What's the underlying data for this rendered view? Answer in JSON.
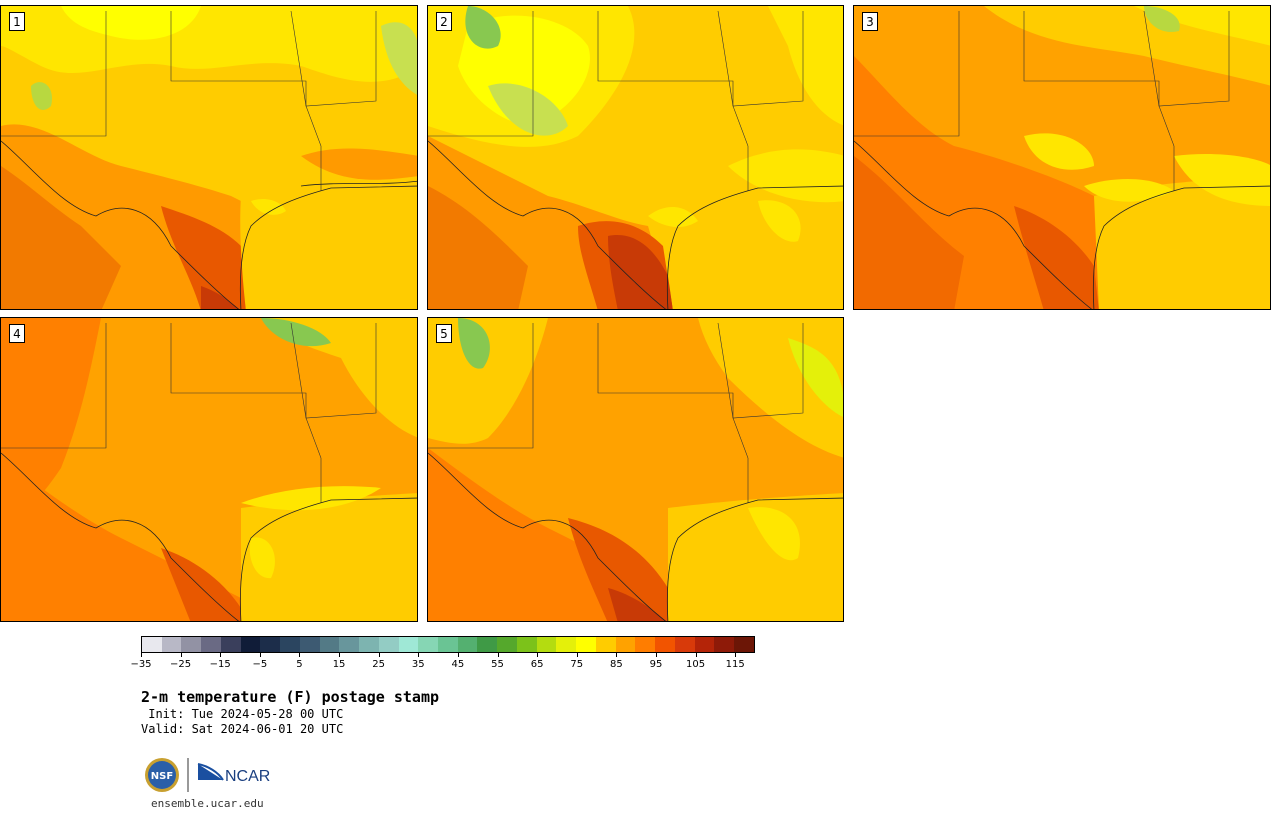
{
  "panels": [
    {
      "id": "p1",
      "label": "1"
    },
    {
      "id": "p2",
      "label": "2"
    },
    {
      "id": "p3",
      "label": "3"
    },
    {
      "id": "p4",
      "label": "4"
    },
    {
      "id": "p5",
      "label": "5"
    }
  ],
  "colorbar": {
    "colors": [
      "#e8e8ee",
      "#b8b8c6",
      "#9292a4",
      "#6a6a84",
      "#3a3f5c",
      "#101c38",
      "#1c2d4a",
      "#2b4560",
      "#3d5a72",
      "#537a86",
      "#68969c",
      "#7db4b0",
      "#93ccc4",
      "#9fe8d6",
      "#86d6b4",
      "#6ac494",
      "#54b070",
      "#3f9a46",
      "#55a82c",
      "#7cc21a",
      "#b4dc10",
      "#e4f00a",
      "#ffff00",
      "#ffcc00",
      "#ffa200",
      "#ff7d00",
      "#f25400",
      "#d83a0a",
      "#b42408",
      "#8e1a08",
      "#6c1606"
    ],
    "ticks": [
      "−35",
      "−25",
      "−15",
      "−5",
      "5",
      "15",
      "25",
      "35",
      "45",
      "55",
      "65",
      "75",
      "85",
      "95",
      "105",
      "115"
    ]
  },
  "title": "2-m temperature (F) postage stamp",
  "init_text": " Init: Tue 2024-05-28 00 UTC",
  "valid_text": "Valid: Sat 2024-06-01 20 UTC",
  "logos": {
    "nsf": "NSF",
    "ncar": "NCAR"
  },
  "site": "ensemble.ucar.edu"
}
